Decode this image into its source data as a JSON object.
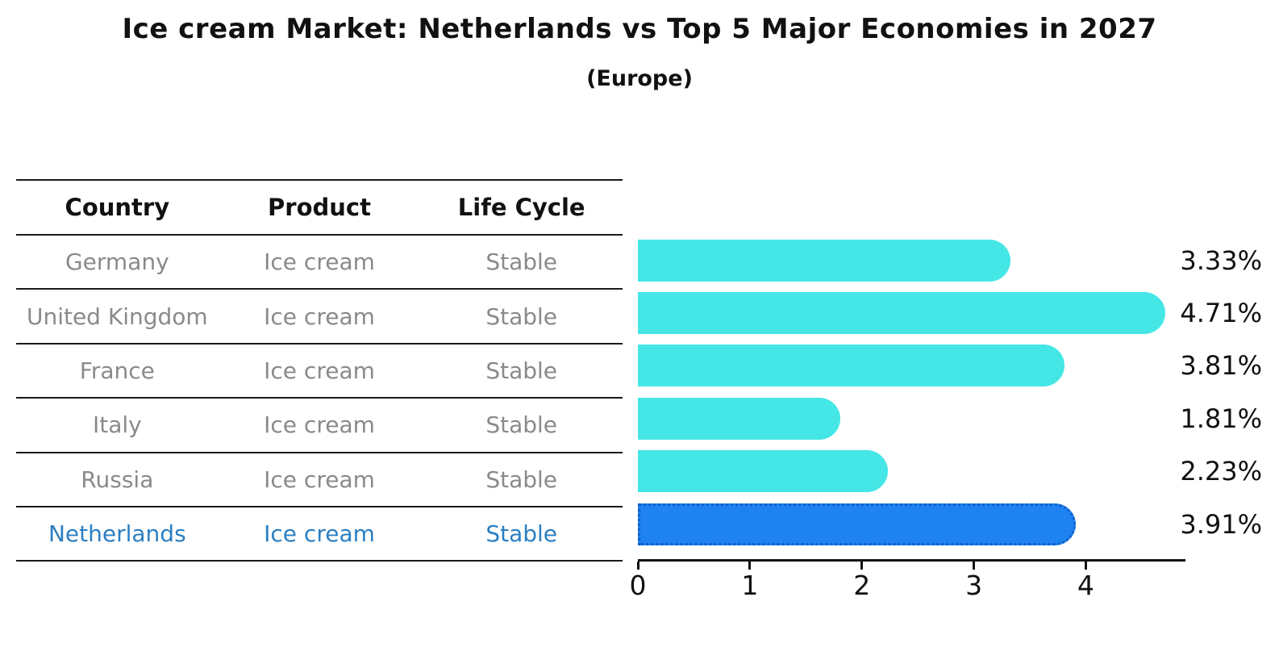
{
  "title": "Ice cream Market: Netherlands vs Top 5 Major Economies in 2027",
  "subtitle": "(Europe)",
  "table": {
    "headers": {
      "country": "Country",
      "product": "Product",
      "life_cycle": "Life Cycle"
    },
    "rows": [
      {
        "country": "Germany",
        "product": "Ice cream",
        "life_cycle": "Stable"
      },
      {
        "country": "United Kingdom",
        "product": "Ice cream",
        "life_cycle": "Stable"
      },
      {
        "country": "France",
        "product": "Ice cream",
        "life_cycle": "Stable"
      },
      {
        "country": "Italy",
        "product": "Ice cream",
        "life_cycle": "Stable"
      },
      {
        "country": "Russia",
        "product": "Ice cream",
        "life_cycle": "Stable"
      },
      {
        "country": "Netherlands",
        "product": "Ice cream",
        "life_cycle": "Stable"
      }
    ]
  },
  "chart_data": {
    "type": "bar",
    "orientation": "horizontal",
    "title": "Ice cream Market: Netherlands vs Top 5 Major Economies in 2027",
    "subtitle": "(Europe)",
    "categories": [
      "Germany",
      "United Kingdom",
      "France",
      "Italy",
      "Russia",
      "Netherlands"
    ],
    "values": [
      3.33,
      4.71,
      3.81,
      1.81,
      2.23,
      3.91
    ],
    "value_labels": [
      "3.33%",
      "4.71%",
      "3.81%",
      "1.81%",
      "2.23%",
      "3.91%"
    ],
    "xticks": [
      0,
      1,
      2,
      3,
      4
    ],
    "xlim": [
      0,
      4.89
    ],
    "grid": false,
    "legend": "none",
    "highlight_index": 5,
    "highlight_category": "Netherlands",
    "bar_color": "#45E6E6",
    "highlight_bar_color": "#1E82F0",
    "highlight_border_color": "#0F5FC8",
    "highlight_text_color": "#2B7FC2",
    "row_text_color": "#8A8A8A",
    "axis_color": "#111111"
  }
}
